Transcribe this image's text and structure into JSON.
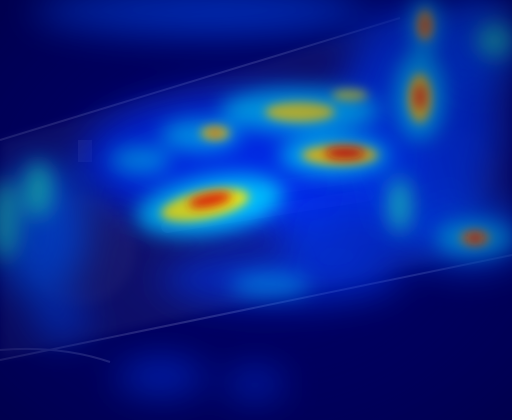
{
  "image": {
    "kind": "attention-heatmap-overlay",
    "subject": "vehicle-side-view",
    "colormap": [
      "#00006a",
      "#0022ff",
      "#00c8ff",
      "#33ffcc",
      "#ffee00",
      "#ff8800",
      "#dd0000"
    ],
    "background_color": "#00005f",
    "overlay_tint": "#ffffff"
  }
}
